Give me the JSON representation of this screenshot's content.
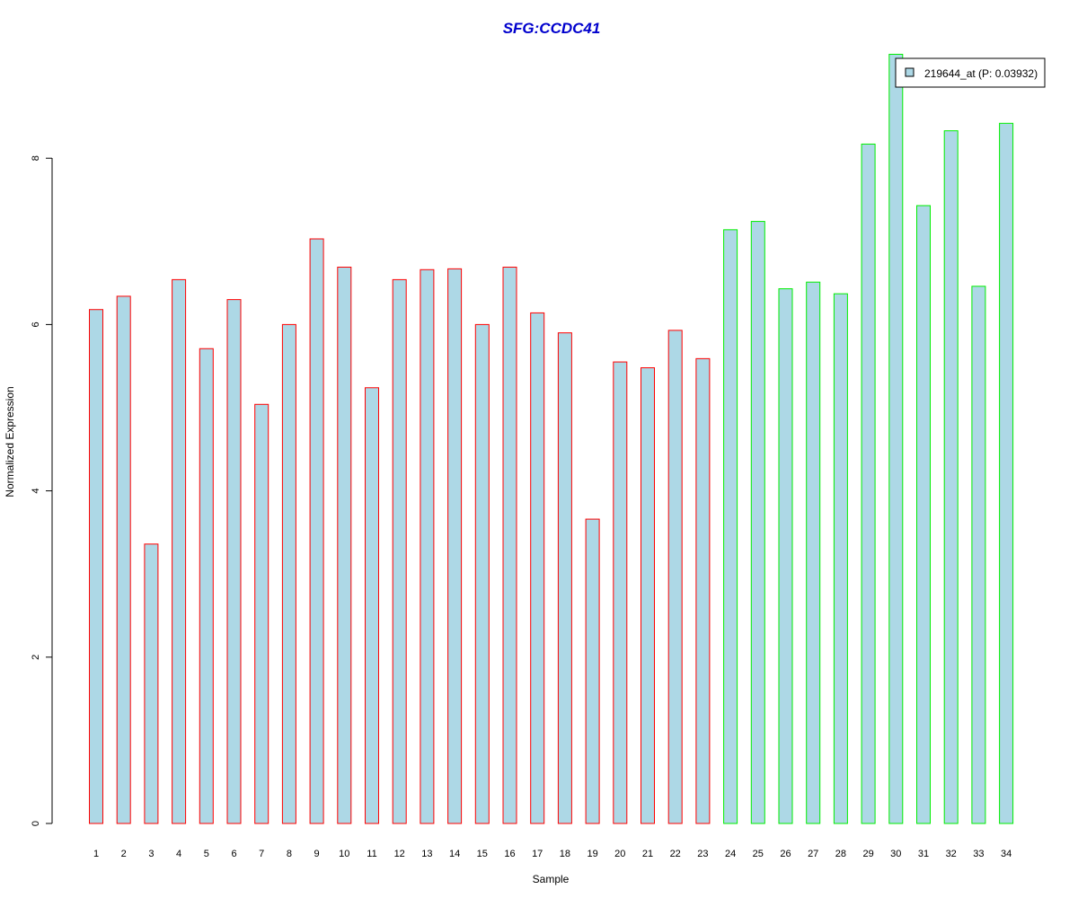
{
  "chart_data": {
    "type": "bar",
    "title": "SFG:CCDC41",
    "xlabel": "Sample",
    "ylabel": "Normalized Expression",
    "categories": [
      "1",
      "2",
      "3",
      "4",
      "5",
      "6",
      "7",
      "8",
      "9",
      "10",
      "11",
      "12",
      "13",
      "14",
      "15",
      "16",
      "17",
      "18",
      "19",
      "20",
      "21",
      "22",
      "23",
      "24",
      "25",
      "26",
      "27",
      "28",
      "29",
      "30",
      "31",
      "32",
      "33",
      "34"
    ],
    "values": [
      6.18,
      6.34,
      3.36,
      6.54,
      5.71,
      6.3,
      5.04,
      6.0,
      7.03,
      6.69,
      5.24,
      6.54,
      6.66,
      6.67,
      6.0,
      6.69,
      6.14,
      5.9,
      3.66,
      5.55,
      5.48,
      5.93,
      5.59,
      7.14,
      7.24,
      6.43,
      6.51,
      6.37,
      8.17,
      9.25,
      7.43,
      8.33,
      6.46,
      8.42
    ],
    "groups": [
      "red",
      "red",
      "red",
      "red",
      "red",
      "red",
      "red",
      "red",
      "red",
      "red",
      "red",
      "red",
      "red",
      "red",
      "red",
      "red",
      "red",
      "red",
      "red",
      "red",
      "red",
      "red",
      "red",
      "green",
      "green",
      "green",
      "green",
      "green",
      "green",
      "green",
      "green",
      "green",
      "green",
      "green"
    ],
    "yticks": [
      "0",
      "2",
      "4",
      "6",
      "8"
    ],
    "ylim": [
      0,
      9.25
    ],
    "legend": {
      "label": "219644_at (P: 0.03932)",
      "position": "top-right"
    },
    "colors": {
      "fill": "#add8e6",
      "red": "#ff0000",
      "green": "#00ee00",
      "title": "#0000cd"
    }
  }
}
